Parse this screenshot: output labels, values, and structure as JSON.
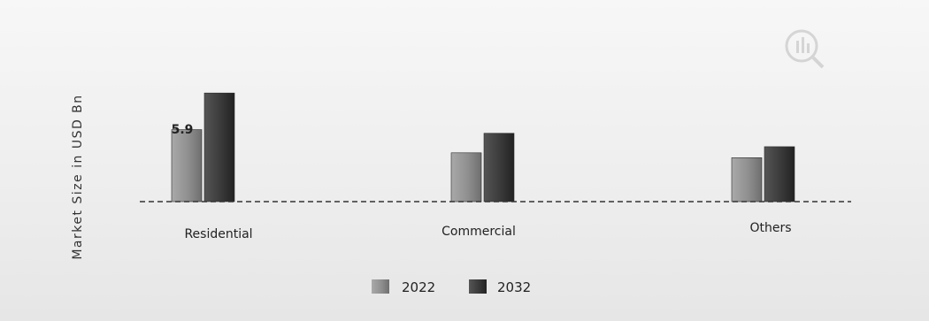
{
  "chart_data": {
    "type": "bar",
    "title": "",
    "xlabel": "",
    "ylabel": "Market Size in USD Bn",
    "categories": [
      "Residential",
      "Commercial",
      "Others"
    ],
    "series": [
      {
        "name": "2022",
        "values": [
          5.9,
          4.0,
          3.6
        ],
        "color": "#8c8c8c"
      },
      {
        "name": "2032",
        "values": [
          8.9,
          5.6,
          4.5
        ],
        "color": "#3d3d3d"
      }
    ],
    "data_labels": [
      {
        "series": "2022",
        "category": "Residential",
        "text": "5.9"
      }
    ],
    "ylim": [
      0,
      10
    ],
    "grid": false,
    "legend_position": "bottom-center",
    "baseline_style": "dashed"
  },
  "colors": {
    "background": "#efefef",
    "series_2022": "#8c8c8c",
    "series_2032": "#3d3d3d",
    "baseline": "#333333"
  },
  "logo": {
    "icon": "mrfr-logo-icon"
  }
}
